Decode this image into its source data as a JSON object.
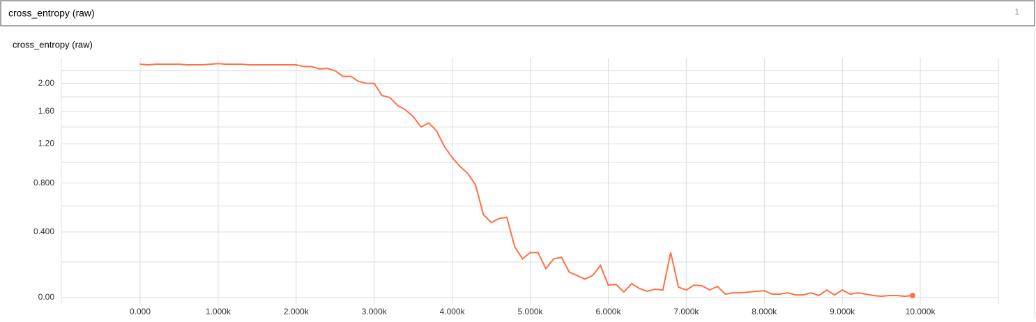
{
  "header": {
    "title": "cross_entropy (raw)",
    "count": "1"
  },
  "chart_data": {
    "type": "line",
    "title": "cross_entropy (raw)",
    "x": [
      0,
      100,
      200,
      300,
      400,
      500,
      600,
      700,
      800,
      900,
      1000,
      1100,
      1200,
      1300,
      1400,
      1500,
      1600,
      1700,
      1800,
      1900,
      2000,
      2100,
      2200,
      2300,
      2400,
      2500,
      2600,
      2700,
      2800,
      2900,
      3000,
      3100,
      3200,
      3300,
      3400,
      3500,
      3600,
      3700,
      3800,
      3900,
      4000,
      4100,
      4200,
      4300,
      4400,
      4500,
      4600,
      4700,
      4800,
      4900,
      5000,
      5100,
      5200,
      5300,
      5400,
      5500,
      5600,
      5700,
      5800,
      5900,
      6000,
      6100,
      6200,
      6300,
      6400,
      6500,
      6600,
      6700,
      6800,
      6900,
      7000,
      7100,
      7200,
      7300,
      7400,
      7500,
      7600,
      7700,
      7800,
      7900,
      8000,
      8100,
      8200,
      8300,
      8400,
      8500,
      8600,
      8700,
      8800,
      8900,
      9000,
      9100,
      9200,
      9300,
      9400,
      9500,
      9600,
      9700,
      9800,
      9900
    ],
    "series": [
      {
        "name": "cross_entropy",
        "color": "#ff7043",
        "values": [
          2.31,
          2.3,
          2.31,
          2.31,
          2.31,
          2.31,
          2.3,
          2.3,
          2.3,
          2.31,
          2.32,
          2.31,
          2.31,
          2.31,
          2.3,
          2.3,
          2.3,
          2.3,
          2.3,
          2.3,
          2.3,
          2.27,
          2.27,
          2.23,
          2.24,
          2.2,
          2.11,
          2.11,
          2.03,
          2.0,
          2.0,
          1.82,
          1.79,
          1.68,
          1.62,
          1.53,
          1.4,
          1.45,
          1.35,
          1.17,
          1.05,
          0.96,
          0.89,
          0.78,
          0.53,
          0.47,
          0.5,
          0.51,
          0.3,
          0.22,
          0.26,
          0.26,
          0.16,
          0.22,
          0.23,
          0.14,
          0.12,
          0.1,
          0.12,
          0.18,
          0.066,
          0.07,
          0.029,
          0.074,
          0.048,
          0.033,
          0.044,
          0.04,
          0.26,
          0.055,
          0.04,
          0.066,
          0.063,
          0.04,
          0.059,
          0.018,
          0.025,
          0.025,
          0.029,
          0.033,
          0.036,
          0.018,
          0.018,
          0.025,
          0.014,
          0.014,
          0.025,
          0.011,
          0.04,
          0.014,
          0.04,
          0.018,
          0.025,
          0.018,
          0.011,
          0.007,
          0.011,
          0.011,
          0.007,
          0.011
        ]
      }
    ],
    "xlim": [
      -1010,
      11000
    ],
    "xticks": [
      {
        "value": 0,
        "label": "0.000"
      },
      {
        "value": 1000,
        "label": "1.000k"
      },
      {
        "value": 2000,
        "label": "2.000k"
      },
      {
        "value": 3000,
        "label": "3.000k"
      },
      {
        "value": 4000,
        "label": "4.000k"
      },
      {
        "value": 5000,
        "label": "5.000k"
      },
      {
        "value": 6000,
        "label": "6.000k"
      },
      {
        "value": 7000,
        "label": "7.000k"
      },
      {
        "value": 8000,
        "label": "8.000k"
      },
      {
        "value": 9000,
        "label": "9.000k"
      },
      {
        "value": 10000,
        "label": "10.000k"
      }
    ],
    "ylim": [
      -0.035,
      2.42
    ],
    "yticks": [
      {
        "value": 0,
        "label": "0.00"
      },
      {
        "value": 0.4,
        "label": "0.400"
      },
      {
        "value": 0.8,
        "label": "0.800"
      },
      {
        "value": 1.2,
        "label": "1.20"
      },
      {
        "value": 1.6,
        "label": "1.60"
      },
      {
        "value": 2,
        "label": "2.00"
      }
    ],
    "minor_yticks": [
      0.2,
      0.6,
      1,
      1.4,
      1.8,
      2.2
    ],
    "yscale": "log1p",
    "grid": true,
    "end_marker": true
  }
}
